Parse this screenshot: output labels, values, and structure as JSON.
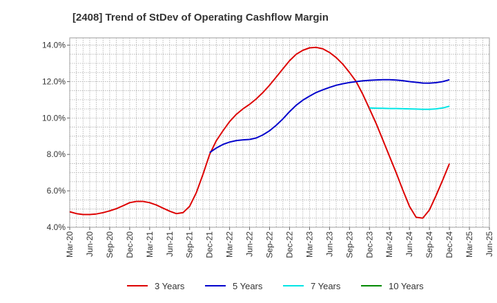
{
  "chart_data": {
    "type": "line",
    "title": "[2408]  Trend of StDev of Operating Cashflow Margin",
    "xlabel": "",
    "ylabel": "",
    "x_ticks": [
      "Mar-20",
      "Jun-20",
      "Sep-20",
      "Dec-20",
      "Mar-21",
      "Jun-21",
      "Sep-21",
      "Dec-21",
      "Mar-22",
      "Jun-22",
      "Sep-22",
      "Dec-22",
      "Mar-23",
      "Jun-23",
      "Sep-23",
      "Dec-23",
      "Mar-24",
      "Jun-24",
      "Sep-24",
      "Dec-24",
      "Mar-25",
      "Jun-25"
    ],
    "y_ticks": [
      "4.0%",
      "6.0%",
      "8.0%",
      "10.0%",
      "12.0%",
      "14.0%"
    ],
    "y_tick_values": [
      4,
      6,
      8,
      10,
      12,
      14
    ],
    "ylim": [
      4.0,
      14.4
    ],
    "grid": true,
    "legend_position": "bottom",
    "series": [
      {
        "name": "3 Years",
        "color": "#dd0000",
        "points": [
          [
            "Mar-20",
            4.85
          ],
          [
            "Apr-20",
            4.75
          ],
          [
            "May-20",
            4.7
          ],
          [
            "Jun-20",
            4.7
          ],
          [
            "Jul-20",
            4.73
          ],
          [
            "Aug-20",
            4.8
          ],
          [
            "Sep-20",
            4.9
          ],
          [
            "Oct-20",
            5.02
          ],
          [
            "Nov-20",
            5.18
          ],
          [
            "Dec-20",
            5.35
          ],
          [
            "Jan-21",
            5.42
          ],
          [
            "Feb-21",
            5.42
          ],
          [
            "Mar-21",
            5.35
          ],
          [
            "Apr-21",
            5.22
          ],
          [
            "May-21",
            5.05
          ],
          [
            "Jun-21",
            4.88
          ],
          [
            "Jul-21",
            4.75
          ],
          [
            "Aug-21",
            4.8
          ],
          [
            "Sep-21",
            5.15
          ],
          [
            "Oct-21",
            5.9
          ],
          [
            "Nov-21",
            6.9
          ],
          [
            "Dec-21",
            8.0
          ],
          [
            "Jan-22",
            8.75
          ],
          [
            "Feb-22",
            9.3
          ],
          [
            "Mar-22",
            9.8
          ],
          [
            "Apr-22",
            10.2
          ],
          [
            "May-22",
            10.5
          ],
          [
            "Jun-22",
            10.75
          ],
          [
            "Jul-22",
            11.05
          ],
          [
            "Aug-22",
            11.4
          ],
          [
            "Sep-22",
            11.8
          ],
          [
            "Oct-22",
            12.25
          ],
          [
            "Nov-22",
            12.7
          ],
          [
            "Dec-22",
            13.15
          ],
          [
            "Jan-23",
            13.5
          ],
          [
            "Feb-23",
            13.72
          ],
          [
            "Mar-23",
            13.85
          ],
          [
            "Apr-23",
            13.88
          ],
          [
            "May-23",
            13.8
          ],
          [
            "Jun-23",
            13.6
          ],
          [
            "Jul-23",
            13.32
          ],
          [
            "Aug-23",
            12.95
          ],
          [
            "Sep-23",
            12.5
          ],
          [
            "Oct-23",
            12.0
          ],
          [
            "Nov-23",
            11.3
          ],
          [
            "Dec-23",
            10.5
          ],
          [
            "Jan-24",
            9.7
          ],
          [
            "Feb-24",
            8.8
          ],
          [
            "Mar-24",
            7.9
          ],
          [
            "Apr-24",
            7.0
          ],
          [
            "May-24",
            6.05
          ],
          [
            "Jun-24",
            5.15
          ],
          [
            "Jul-24",
            4.55
          ],
          [
            "Aug-24",
            4.5
          ],
          [
            "Sep-24",
            4.95
          ],
          [
            "Oct-24",
            5.75
          ],
          [
            "Nov-24",
            6.6
          ],
          [
            "Dec-24",
            7.5
          ]
        ]
      },
      {
        "name": "5 Years",
        "color": "#0000cc",
        "points": [
          [
            "Dec-21",
            8.1
          ],
          [
            "Jan-22",
            8.35
          ],
          [
            "Feb-22",
            8.55
          ],
          [
            "Mar-22",
            8.68
          ],
          [
            "Apr-22",
            8.76
          ],
          [
            "May-22",
            8.8
          ],
          [
            "Jun-22",
            8.82
          ],
          [
            "Jul-22",
            8.9
          ],
          [
            "Aug-22",
            9.07
          ],
          [
            "Sep-22",
            9.3
          ],
          [
            "Oct-22",
            9.6
          ],
          [
            "Nov-22",
            9.95
          ],
          [
            "Dec-22",
            10.35
          ],
          [
            "Jan-23",
            10.7
          ],
          [
            "Feb-23",
            10.98
          ],
          [
            "Mar-23",
            11.2
          ],
          [
            "Apr-23",
            11.4
          ],
          [
            "May-23",
            11.55
          ],
          [
            "Jun-23",
            11.68
          ],
          [
            "Jul-23",
            11.8
          ],
          [
            "Aug-23",
            11.88
          ],
          [
            "Sep-23",
            11.95
          ],
          [
            "Oct-23",
            12.0
          ],
          [
            "Nov-23",
            12.04
          ],
          [
            "Dec-23",
            12.07
          ],
          [
            "Jan-24",
            12.09
          ],
          [
            "Feb-24",
            12.1
          ],
          [
            "Mar-24",
            12.1
          ],
          [
            "Apr-24",
            12.08
          ],
          [
            "May-24",
            12.05
          ],
          [
            "Jun-24",
            12.0
          ],
          [
            "Jul-24",
            11.96
          ],
          [
            "Aug-24",
            11.92
          ],
          [
            "Sep-24",
            11.91
          ],
          [
            "Oct-24",
            11.94
          ],
          [
            "Nov-24",
            12.0
          ],
          [
            "Dec-24",
            12.1
          ]
        ]
      },
      {
        "name": "7 Years",
        "color": "#00e5e5",
        "points": [
          [
            "Dec-23",
            10.55
          ],
          [
            "Jan-24",
            10.54
          ],
          [
            "Feb-24",
            10.53
          ],
          [
            "Mar-24",
            10.52
          ],
          [
            "Apr-24",
            10.52
          ],
          [
            "May-24",
            10.51
          ],
          [
            "Jun-24",
            10.5
          ],
          [
            "Jul-24",
            10.49
          ],
          [
            "Aug-24",
            10.48
          ],
          [
            "Sep-24",
            10.48
          ],
          [
            "Oct-24",
            10.5
          ],
          [
            "Nov-24",
            10.55
          ],
          [
            "Dec-24",
            10.65
          ]
        ]
      },
      {
        "name": "10 Years",
        "color": "#008800",
        "points": []
      }
    ]
  }
}
